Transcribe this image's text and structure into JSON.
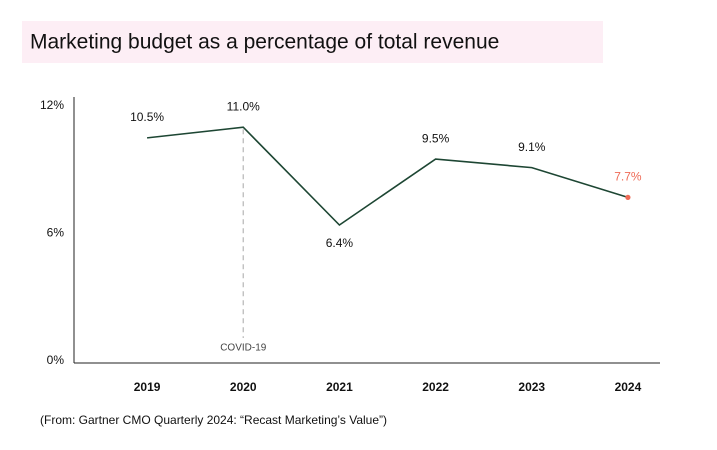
{
  "chart_data": {
    "type": "line",
    "title": "Marketing budget as a percentage of total revenue",
    "categories": [
      "2019",
      "2020",
      "2021",
      "2022",
      "2023",
      "2024"
    ],
    "series": [
      {
        "color": "#1d4633",
        "values": [
          10.5,
          11.0,
          6.4,
          9.5,
          9.1,
          7.7
        ],
        "value_labels": [
          "10.5%",
          "11.0%",
          "6.4%",
          "9.5%",
          "9.1%",
          "7.7%"
        ],
        "point_colors": [
          null,
          null,
          null,
          null,
          null,
          "#ef6b57"
        ]
      }
    ],
    "ylim": [
      0,
      12
    ],
    "yticks": [
      {
        "value": 0,
        "label": "0%"
      },
      {
        "value": 6,
        "label": "6%"
      },
      {
        "value": 12,
        "label": "12%"
      }
    ],
    "grid": false,
    "annotations": [
      {
        "text": "COVID-19",
        "at": "2020"
      }
    ],
    "source": "(From: Gartner CMO Quarterly 2024: “Recast Marketing’s Value”)"
  }
}
